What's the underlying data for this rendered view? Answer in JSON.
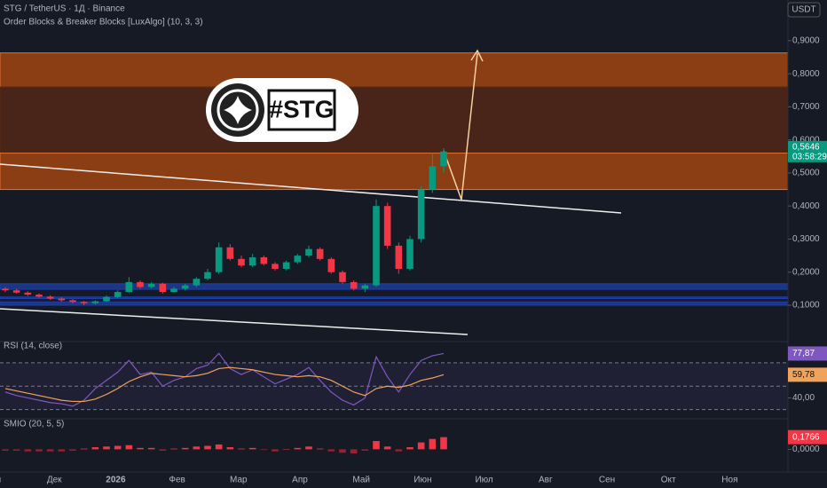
{
  "chart_data": {
    "type": "candlestick",
    "title": "STG / TetherUS · 1Д · Binance",
    "indicator_title": "Order Blocks & Breaker Blocks [LuxAlgo] (10, 3, 3)",
    "currency_button": "USDT",
    "badge_text": "#STG",
    "countdown": "03:58:29",
    "open": [
      0.15,
      0.145,
      0.138,
      0.132,
      0.126,
      0.12,
      0.115,
      0.11,
      0.106,
      0.112,
      0.125,
      0.14,
      0.17,
      0.155,
      0.165,
      0.14,
      0.15,
      0.16,
      0.18,
      0.2,
      0.275,
      0.24,
      0.22,
      0.245,
      0.225,
      0.21,
      0.23,
      0.25,
      0.27,
      0.24,
      0.2,
      0.17,
      0.15,
      0.16,
      0.4,
      0.28,
      0.21,
      0.3,
      0.45,
      0.52
    ],
    "high": [
      0.155,
      0.15,
      0.142,
      0.136,
      0.13,
      0.124,
      0.118,
      0.113,
      0.115,
      0.13,
      0.145,
      0.185,
      0.175,
      0.17,
      0.168,
      0.155,
      0.165,
      0.185,
      0.21,
      0.29,
      0.285,
      0.25,
      0.255,
      0.25,
      0.23,
      0.235,
      0.255,
      0.28,
      0.275,
      0.245,
      0.205,
      0.175,
      0.165,
      0.42,
      0.41,
      0.29,
      0.31,
      0.46,
      0.56,
      0.575
    ],
    "low": [
      0.14,
      0.135,
      0.128,
      0.122,
      0.116,
      0.11,
      0.105,
      0.1,
      0.102,
      0.11,
      0.122,
      0.138,
      0.15,
      0.15,
      0.135,
      0.138,
      0.145,
      0.155,
      0.175,
      0.195,
      0.235,
      0.215,
      0.215,
      0.22,
      0.205,
      0.205,
      0.225,
      0.245,
      0.235,
      0.195,
      0.165,
      0.145,
      0.14,
      0.155,
      0.27,
      0.195,
      0.205,
      0.29,
      0.44,
      0.5
    ],
    "close": [
      0.145,
      0.138,
      0.132,
      0.126,
      0.12,
      0.115,
      0.11,
      0.106,
      0.112,
      0.125,
      0.14,
      0.17,
      0.155,
      0.165,
      0.14,
      0.15,
      0.16,
      0.18,
      0.2,
      0.275,
      0.24,
      0.22,
      0.245,
      0.225,
      0.21,
      0.23,
      0.25,
      0.27,
      0.24,
      0.2,
      0.17,
      0.15,
      0.16,
      0.4,
      0.28,
      0.21,
      0.3,
      0.45,
      0.52,
      0.5646
    ],
    "close_labels": [
      null,
      null,
      null,
      null,
      null,
      null,
      null,
      null,
      null,
      null,
      null,
      null,
      null,
      null,
      null,
      null,
      null,
      null,
      null,
      null,
      null,
      null,
      null,
      null,
      null,
      null,
      null,
      null,
      null,
      null,
      null,
      null,
      null,
      null,
      null,
      null,
      null,
      null,
      null,
      "0,5646"
    ],
    "ylim": [
      -0.01,
      1.023
    ],
    "yticks": [
      {
        "value": 0.1,
        "label": "0,1000"
      },
      {
        "value": 0.2,
        "label": "0,2000"
      },
      {
        "value": 0.3,
        "label": "0,3000"
      },
      {
        "value": 0.4,
        "label": "0,4000"
      },
      {
        "value": 0.5,
        "label": "0,5000"
      },
      {
        "value": 0.6,
        "label": "0,6000"
      },
      {
        "value": 0.7,
        "label": "0,7000"
      },
      {
        "value": 0.8,
        "label": "0,8000"
      },
      {
        "value": 0.9,
        "label": "0,9000"
      }
    ],
    "zones": [
      {
        "top": 0.863,
        "bottom": 0.76,
        "color": "#b34a0e"
      },
      {
        "top": 0.76,
        "bottom": 0.56,
        "color": "#5a2a14"
      },
      {
        "top": 0.56,
        "bottom": 0.45,
        "color": "#b34a0e"
      },
      {
        "top": 0.165,
        "bottom": 0.148,
        "color": "#1e3fa8"
      },
      {
        "top": 0.125,
        "bottom": 0.12,
        "color": "#1e3fa8"
      },
      {
        "top": 0.11,
        "bottom": 0.1,
        "color": "#1e3fa8"
      }
    ],
    "xticks": [
      "Ноя",
      "Дек",
      "2026",
      "Фев",
      "Мар",
      "Апр",
      "Май",
      "Июн",
      "Июл",
      "Авг",
      "Сен",
      "Окт",
      "Ноя"
    ],
    "rsi": {
      "title": "RSI (14, close)",
      "color": "#7e57c2",
      "ma_color": "#f0a35b",
      "values": [
        45,
        42,
        40,
        38,
        36,
        35,
        33,
        38,
        48,
        55,
        62,
        72,
        60,
        62,
        50,
        55,
        58,
        65,
        68,
        78,
        65,
        60,
        64,
        58,
        52,
        56,
        60,
        66,
        55,
        45,
        38,
        34,
        40,
        75,
        58,
        45,
        60,
        72,
        76,
        77.87
      ],
      "value_labels": [
        null,
        null,
        null,
        null,
        null,
        null,
        null,
        null,
        null,
        null,
        null,
        null,
        null,
        null,
        null,
        null,
        null,
        null,
        null,
        null,
        null,
        null,
        null,
        null,
        null,
        null,
        null,
        null,
        null,
        null,
        null,
        null,
        null,
        null,
        null,
        null,
        null,
        null,
        null,
        "77,87"
      ],
      "ma": [
        48,
        46,
        44,
        42,
        40,
        38,
        37,
        37,
        39,
        43,
        48,
        54,
        58,
        61,
        60,
        59,
        58,
        59,
        61,
        65,
        66,
        65,
        64,
        62,
        60,
        59,
        58,
        59,
        58,
        55,
        50,
        45,
        42,
        48,
        50,
        49,
        51,
        55,
        57,
        59.78
      ],
      "ma_labels": [
        null,
        null,
        null,
        null,
        null,
        null,
        null,
        null,
        null,
        null,
        null,
        null,
        null,
        null,
        null,
        null,
        null,
        null,
        null,
        null,
        null,
        null,
        null,
        null,
        null,
        null,
        null,
        null,
        null,
        null,
        null,
        null,
        null,
        null,
        null,
        null,
        null,
        null,
        null,
        "59,78"
      ],
      "ylim": [
        23.7,
        87.3
      ],
      "yticks": [
        {
          "value": 40,
          "label": "40,00"
        }
      ],
      "bands": [
        70,
        50,
        30
      ]
    },
    "smio": {
      "title": "SMIO (20, 5, 5)",
      "up_color": "#f23645",
      "down_color": "#9c2030",
      "values": [
        -0.02,
        -0.02,
        -0.03,
        -0.03,
        -0.03,
        -0.03,
        -0.02,
        0.01,
        0.03,
        0.04,
        0.05,
        0.06,
        0.02,
        0.02,
        -0.02,
        0.01,
        0.02,
        0.04,
        0.05,
        0.07,
        0.03,
        0.01,
        0.02,
        -0.01,
        -0.03,
        0.0,
        0.02,
        0.04,
        0.01,
        -0.03,
        -0.05,
        -0.06,
        -0.02,
        0.12,
        0.04,
        -0.03,
        0.03,
        0.1,
        0.15,
        0.1766
      ],
      "value_labels": [
        null,
        null,
        null,
        null,
        null,
        null,
        null,
        null,
        null,
        null,
        null,
        null,
        null,
        null,
        null,
        null,
        null,
        null,
        null,
        null,
        null,
        null,
        null,
        null,
        null,
        null,
        null,
        null,
        null,
        null,
        null,
        null,
        null,
        null,
        null,
        null,
        null,
        null,
        null,
        "0,1766"
      ],
      "ylim": [
        -0.33,
        0.43
      ],
      "yticks": [
        {
          "value": 0,
          "label": "0,0000"
        }
      ]
    }
  }
}
